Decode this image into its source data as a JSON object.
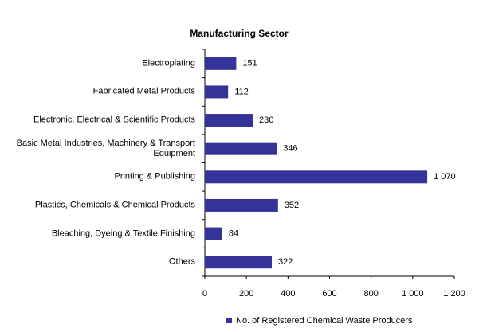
{
  "chart_data": {
    "type": "barh",
    "title": "Manufacturing Sector",
    "categories": [
      "Electroplating",
      "Fabricated Metal Products",
      "Electronic, Electrical & Scientific Products",
      "Basic Metal Industries, Machinery & Transport Equipment",
      "Printing & Publishing",
      "Plastics, Chemicals & Chemical Products",
      "Bleaching, Dyeing & Textile Finishing",
      "Others"
    ],
    "series": [
      {
        "name": "No. of Registered Chemical Waste Producers",
        "color": "#333399",
        "values": [
          151,
          112,
          230,
          346,
          1070,
          352,
          84,
          322
        ],
        "value_labels": [
          "151",
          "112",
          "230",
          "346",
          "1 070",
          "352",
          "84",
          "322"
        ]
      }
    ],
    "xlim": [
      0,
      1200
    ],
    "xticks": [
      0,
      200,
      400,
      600,
      800,
      {
        "value": 1000,
        "label": "1 000"
      },
      {
        "value": 1200,
        "label": "1 200"
      }
    ],
    "legend": "bottom"
  }
}
